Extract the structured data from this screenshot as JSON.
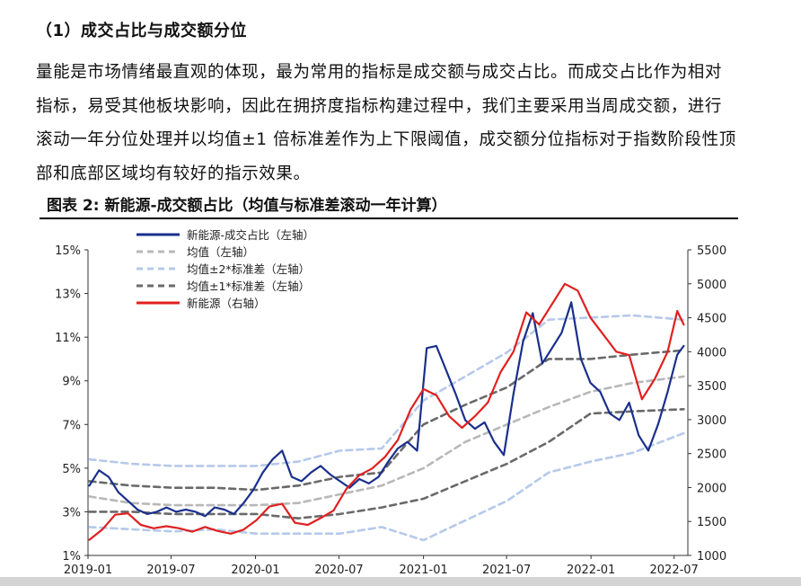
{
  "heading": "（1）成交占比与成交额分位",
  "paragraph": "量能是市场情绪最直观的体现，最为常用的指标是成交额与成交占比。而成交占比作为相对指标，易受其他板块影响，因此在拥挤度指标构建过程中，我们主要采用当周成交额，进行滚动一年分位处理并以均值±1 倍标准差作为上下限阈值，成交额分位指标对于指数阶段性顶部和底部区域均有较好的指示效果。",
  "figure_title": "图表 2:  新能源-成交额占比（均值与标准差滚动一年计算）",
  "colors": {
    "ratio": "#1a2f8c",
    "mean": "#b8b8b8",
    "band2": "#b6c9ea",
    "band1": "#6a6a6a",
    "index": "#e02020"
  },
  "chart_data": {
    "type": "line",
    "title": "",
    "grid": false,
    "legend_position": "top-left",
    "x_ticks": [
      "2019-01",
      "2019-07",
      "2020-01",
      "2020-07",
      "2021-01",
      "2021-07",
      "2022-01",
      "2022-07"
    ],
    "x_range": [
      "2019-01-01",
      "2022-07-31"
    ],
    "y_left": {
      "range": [
        1,
        15
      ],
      "ticks": [
        "1%",
        "3%",
        "5%",
        "7%",
        "9%",
        "11%",
        "13%",
        "15%"
      ]
    },
    "y_right": {
      "range": [
        1000,
        5500
      ],
      "ticks": [
        "1000",
        "1500",
        "2000",
        "2500",
        "3000",
        "3500",
        "4000",
        "4500",
        "5000",
        "5500"
      ]
    },
    "series": [
      {
        "name": "新能源-成交占比（左轴）",
        "axis": "left",
        "style": "solid",
        "color_key": "ratio",
        "x": [
          "2019-01-04",
          "2019-01-25",
          "2019-02-15",
          "2019-03-08",
          "2019-03-29",
          "2019-04-19",
          "2019-05-10",
          "2019-05-31",
          "2019-06-21",
          "2019-07-12",
          "2019-08-02",
          "2019-08-23",
          "2019-09-13",
          "2019-10-04",
          "2019-10-25",
          "2019-11-15",
          "2019-12-06",
          "2019-12-27",
          "2020-01-17",
          "2020-02-07",
          "2020-02-28",
          "2020-03-20",
          "2020-04-10",
          "2020-05-01",
          "2020-05-22",
          "2020-06-12",
          "2020-07-03",
          "2020-07-24",
          "2020-08-14",
          "2020-09-04",
          "2020-09-25",
          "2020-10-16",
          "2020-11-06",
          "2020-11-27",
          "2020-12-18",
          "2021-01-08",
          "2021-01-29",
          "2021-02-19",
          "2021-03-12",
          "2021-04-02",
          "2021-04-23",
          "2021-05-14",
          "2021-06-04",
          "2021-06-25",
          "2021-07-16",
          "2021-08-06",
          "2021-08-27",
          "2021-09-17",
          "2021-10-08",
          "2021-10-29",
          "2021-11-19",
          "2021-12-10",
          "2021-12-31",
          "2022-01-21",
          "2022-02-11",
          "2022-03-04",
          "2022-03-25",
          "2022-04-15",
          "2022-05-06",
          "2022-05-27",
          "2022-06-17",
          "2022-07-08",
          "2022-07-22"
        ],
        "values": [
          4.2,
          4.9,
          4.6,
          3.9,
          3.5,
          3.1,
          2.9,
          3.0,
          3.2,
          3.0,
          3.1,
          3.0,
          2.8,
          3.2,
          3.1,
          2.9,
          3.4,
          4.0,
          4.8,
          5.4,
          5.8,
          4.6,
          4.4,
          4.8,
          5.1,
          4.7,
          4.4,
          4.1,
          4.5,
          4.3,
          4.6,
          5.3,
          5.9,
          6.2,
          5.8,
          10.5,
          10.6,
          9.5,
          8.4,
          7.2,
          6.8,
          7.1,
          6.2,
          5.6,
          8.4,
          10.8,
          12.1,
          9.8,
          10.5,
          11.2,
          12.6,
          10.0,
          8.9,
          8.5,
          7.5,
          7.2,
          8.0,
          6.5,
          5.8,
          7.0,
          8.5,
          10.2,
          10.6
        ]
      },
      {
        "name": "均值（左轴）",
        "axis": "left",
        "style": "dashed",
        "color_key": "mean",
        "x": [
          "2019-01-04",
          "2019-04-05",
          "2019-07-05",
          "2019-10-04",
          "2020-01-03",
          "2020-04-03",
          "2020-07-03",
          "2020-10-02",
          "2021-01-01",
          "2021-04-02",
          "2021-07-02",
          "2021-10-01",
          "2021-12-31",
          "2022-04-01",
          "2022-07-22"
        ],
        "values": [
          3.7,
          3.4,
          3.3,
          3.3,
          3.3,
          3.4,
          3.8,
          4.2,
          5.0,
          6.2,
          7.0,
          7.8,
          8.5,
          8.9,
          9.2
        ]
      },
      {
        "name": "均值±2*标准差（左轴）",
        "axis": "left",
        "style": "dashed",
        "color_key": "band2",
        "x": [
          "2019-01-04",
          "2019-04-05",
          "2019-07-05",
          "2019-10-04",
          "2020-01-03",
          "2020-04-03",
          "2020-07-03",
          "2020-10-02",
          "2021-01-01",
          "2021-04-02",
          "2021-07-02",
          "2021-10-01",
          "2021-12-31",
          "2022-04-01",
          "2022-07-22"
        ],
        "values": [
          5.4,
          5.2,
          5.1,
          5.1,
          5.1,
          5.3,
          5.8,
          5.9,
          8.1,
          9.2,
          10.3,
          11.8,
          11.9,
          12.0,
          11.8
        ]
      },
      {
        "name": "",
        "axis": "left",
        "style": "dashed",
        "color_key": "band2",
        "x": [
          "2019-01-04",
          "2019-04-05",
          "2019-07-05",
          "2019-10-04",
          "2020-01-03",
          "2020-04-03",
          "2020-07-03",
          "2020-10-02",
          "2021-01-01",
          "2021-04-02",
          "2021-07-02",
          "2021-10-01",
          "2021-12-31",
          "2022-04-01",
          "2022-07-22"
        ],
        "values": [
          2.3,
          2.2,
          2.1,
          2.2,
          2.0,
          2.0,
          2.0,
          2.3,
          1.7,
          2.6,
          3.5,
          4.8,
          5.3,
          5.7,
          6.6
        ]
      },
      {
        "name": "均值±1*标准差（左轴）",
        "axis": "left",
        "style": "dashed",
        "color_key": "band1",
        "x": [
          "2019-01-04",
          "2019-04-05",
          "2019-07-05",
          "2019-10-04",
          "2020-01-03",
          "2020-04-03",
          "2020-07-03",
          "2020-10-02",
          "2021-01-01",
          "2021-04-02",
          "2021-07-02",
          "2021-10-01",
          "2021-12-31",
          "2022-04-01",
          "2022-07-22"
        ],
        "values": [
          4.4,
          4.2,
          4.1,
          4.1,
          4.0,
          4.2,
          4.6,
          4.8,
          7.0,
          7.9,
          8.7,
          10.0,
          10.0,
          10.2,
          10.4
        ]
      },
      {
        "name": "",
        "axis": "left",
        "style": "dashed",
        "color_key": "band1",
        "x": [
          "2019-01-04",
          "2019-04-05",
          "2019-07-05",
          "2019-10-04",
          "2020-01-03",
          "2020-04-03",
          "2020-07-03",
          "2020-10-02",
          "2021-01-01",
          "2021-04-02",
          "2021-07-02",
          "2021-10-01",
          "2021-12-31",
          "2022-04-01",
          "2022-07-22"
        ],
        "values": [
          3.0,
          3.0,
          2.9,
          2.9,
          2.9,
          2.7,
          2.9,
          3.2,
          3.6,
          4.4,
          5.2,
          6.2,
          7.5,
          7.6,
          7.7
        ]
      },
      {
        "name": "新能源（右轴）",
        "axis": "right",
        "style": "solid",
        "color_key": "index",
        "x": [
          "2019-01-04",
          "2019-02-01",
          "2019-03-01",
          "2019-03-29",
          "2019-04-26",
          "2019-05-24",
          "2019-06-21",
          "2019-07-19",
          "2019-08-16",
          "2019-09-13",
          "2019-10-11",
          "2019-11-08",
          "2019-12-06",
          "2020-01-03",
          "2020-01-31",
          "2020-02-28",
          "2020-03-27",
          "2020-04-24",
          "2020-05-22",
          "2020-06-19",
          "2020-07-17",
          "2020-08-14",
          "2020-09-11",
          "2020-10-09",
          "2020-11-06",
          "2020-12-04",
          "2021-01-01",
          "2021-01-29",
          "2021-02-26",
          "2021-03-26",
          "2021-04-23",
          "2021-05-21",
          "2021-06-18",
          "2021-07-16",
          "2021-08-13",
          "2021-09-10",
          "2021-10-08",
          "2021-11-05",
          "2021-12-03",
          "2021-12-31",
          "2022-01-28",
          "2022-02-25",
          "2022-03-25",
          "2022-04-22",
          "2022-05-20",
          "2022-06-17",
          "2022-07-08",
          "2022-07-22"
        ],
        "values": [
          1230,
          1380,
          1600,
          1620,
          1450,
          1400,
          1430,
          1400,
          1350,
          1420,
          1360,
          1320,
          1380,
          1520,
          1720,
          1760,
          1480,
          1450,
          1550,
          1660,
          1980,
          2180,
          2280,
          2450,
          2700,
          3150,
          3450,
          3360,
          3050,
          2880,
          3050,
          3250,
          3700,
          4000,
          4580,
          4400,
          4700,
          5000,
          4900,
          4500,
          4250,
          4000,
          3950,
          3300,
          3600,
          4000,
          4600,
          4400
        ]
      }
    ]
  }
}
